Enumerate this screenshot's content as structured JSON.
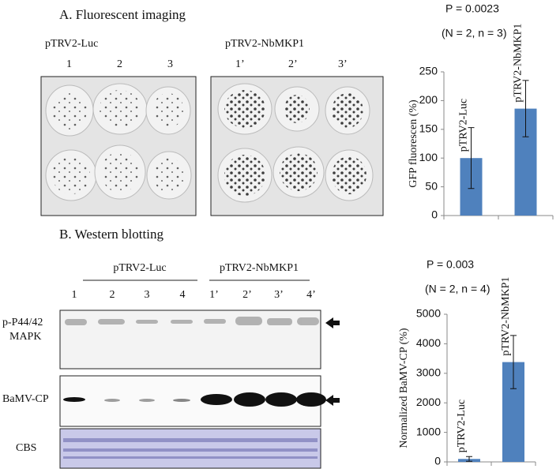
{
  "panel_a": {
    "title": "A. Fluorescent imaging",
    "group_labels": [
      "pTRV2-Luc",
      "pTRV2-NbMKP1"
    ],
    "lane_labels": [
      "1",
      "2",
      "3",
      "1’",
      "2’",
      "3’"
    ]
  },
  "panel_b": {
    "title": "B. Western blotting",
    "group_labels": [
      "pTRV2-Luc",
      "pTRV2-NbMKP1"
    ],
    "lane_labels": [
      "1",
      "2",
      "3",
      "4",
      "1’",
      "2’",
      "3’",
      "4’"
    ],
    "row_labels": [
      [
        "p-P44/42",
        "MAPK"
      ],
      [
        "BaMV-CP"
      ],
      [
        "CBS"
      ]
    ]
  },
  "chart_data": [
    {
      "type": "bar",
      "y_label": "GFP fluorescen (%)",
      "annotations": [
        "P = 0.0023",
        "(N = 2, n = 3)"
      ],
      "categories": [
        "pTRV2-Luc",
        "pTRV2-NbMKP1"
      ],
      "values": [
        100,
        186
      ],
      "errors": [
        53,
        49
      ],
      "color": "#4f81bd",
      "ylim": [
        0,
        250
      ],
      "yticks": [
        0,
        50,
        100,
        150,
        200,
        250
      ]
    },
    {
      "type": "bar",
      "y_label": "Normalized BaMV-CP (%)",
      "annotations": [
        "P = 0.003",
        "(N = 2, n = 4)"
      ],
      "categories": [
        "pTRV2-Luc",
        "pTRV2-NbMKP1"
      ],
      "values": [
        100,
        3380
      ],
      "errors": [
        80,
        900
      ],
      "color": "#4f81bd",
      "ylim": [
        0,
        5000
      ],
      "yticks": [
        0,
        1000,
        2000,
        3000,
        4000,
        5000
      ]
    }
  ]
}
